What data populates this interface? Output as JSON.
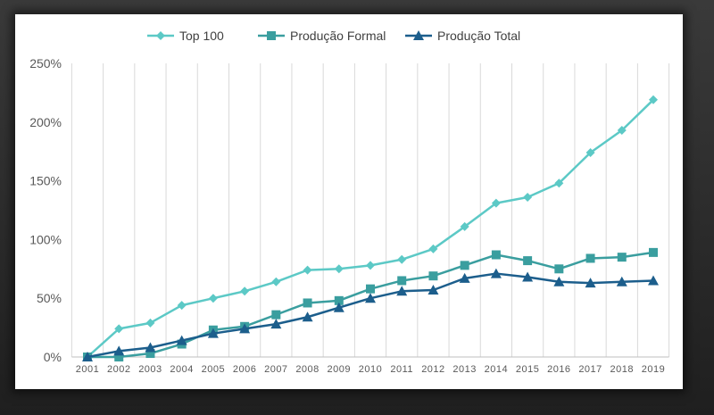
{
  "chart_data": {
    "type": "line",
    "title": "",
    "xlabel": "",
    "ylabel": "",
    "categories": [
      "2001",
      "2002",
      "2003",
      "2004",
      "2005",
      "2006",
      "2007",
      "2008",
      "2009",
      "2010",
      "2011",
      "2012",
      "2013",
      "2014",
      "2015",
      "2016",
      "2017",
      "2018",
      "2019"
    ],
    "ylim": [
      0,
      250
    ],
    "yticks": [
      0,
      50,
      100,
      150,
      200,
      250
    ],
    "ytick_labels": [
      "0%",
      "50%",
      "100%",
      "150%",
      "200%",
      "250%"
    ],
    "grid": "vertical",
    "legend_position": "top",
    "series": [
      {
        "name": "Top 100",
        "color": "#5cc9c6",
        "marker": "diamond",
        "values": [
          0,
          24,
          29,
          44,
          50,
          56,
          64,
          74,
          75,
          78,
          83,
          92,
          111,
          131,
          136,
          148,
          174,
          193,
          219
        ]
      },
      {
        "name": "Produção Formal",
        "color": "#3a9e9f",
        "marker": "square",
        "values": [
          0,
          0,
          3,
          11,
          23,
          26,
          36,
          46,
          48,
          58,
          65,
          69,
          78,
          87,
          82,
          75,
          84,
          85,
          89
        ]
      },
      {
        "name": "Produção Total",
        "color": "#1c5e8c",
        "marker": "triangle",
        "values": [
          0,
          5,
          8,
          14,
          20,
          24,
          28,
          34,
          42,
          50,
          56,
          57,
          67,
          71,
          68,
          64,
          63,
          64,
          65
        ]
      }
    ]
  }
}
